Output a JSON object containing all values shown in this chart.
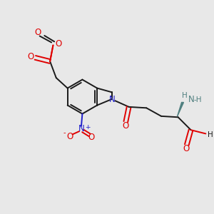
{
  "bg_color": "#e8e8e8",
  "bond_color": "#1a1a1a",
  "oxygen_color": "#e00000",
  "nitrogen_color": "#2020cc",
  "nitrogen_stereo_color": "#508080",
  "fig_size": [
    3.0,
    3.0
  ],
  "dpi": 100,
  "xlim": [
    0,
    10
  ],
  "ylim": [
    0,
    10
  ]
}
